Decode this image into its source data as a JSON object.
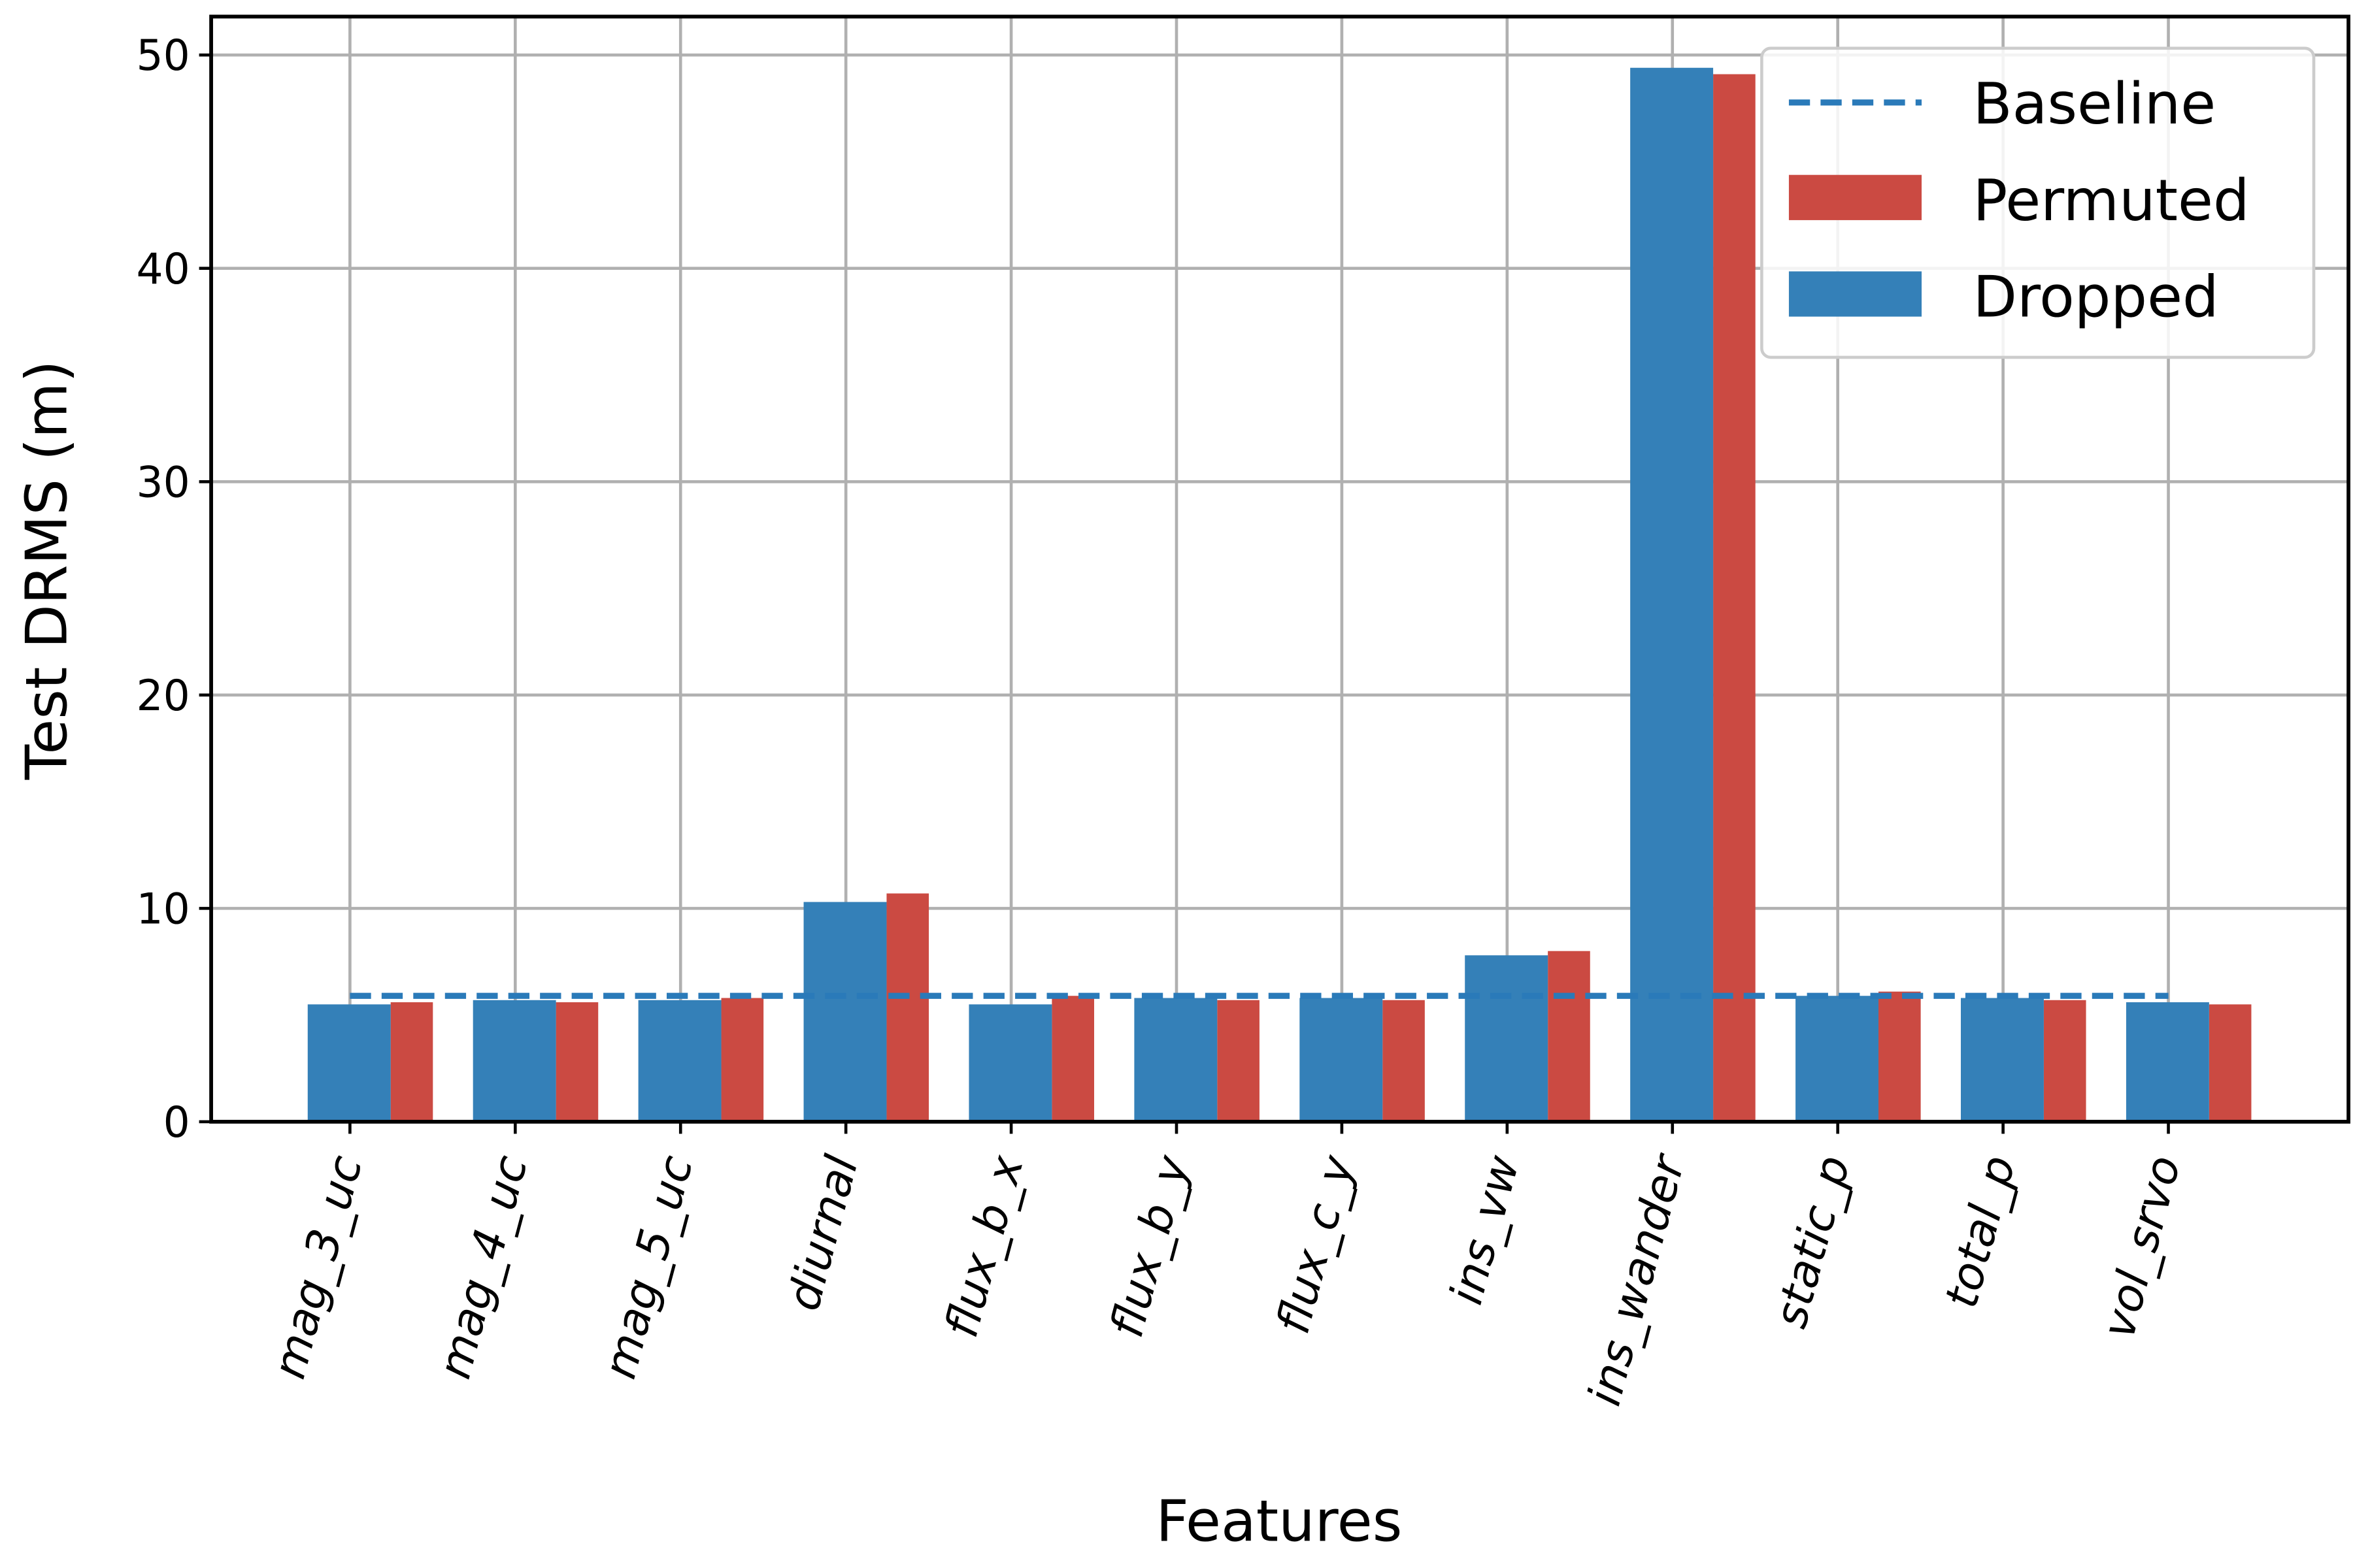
{
  "chart_data": {
    "type": "bar",
    "xlabel": "Features",
    "ylabel": "Test DRMS (m)",
    "categories": [
      "mag_3_uc",
      "mag_4_uc",
      "mag_5_uc",
      "diurnal",
      "flux_b_x",
      "flux_b_y",
      "flux_c_y",
      "ins_vw",
      "ins_wander",
      "static_p",
      "total_p",
      "vol_srvo"
    ],
    "baseline": {
      "name": "Baseline",
      "value": 5.9,
      "color": "#2a7ab9"
    },
    "series": [
      {
        "name": "Permuted",
        "color": "#cb4a42",
        "values": [
          5.6,
          5.6,
          5.8,
          10.7,
          5.9,
          5.7,
          5.7,
          8.0,
          49.1,
          6.1,
          5.7,
          5.5
        ]
      },
      {
        "name": "Dropped",
        "color": "#3480b8",
        "values": [
          5.5,
          5.7,
          5.7,
          10.3,
          5.5,
          5.8,
          5.8,
          7.8,
          49.4,
          5.9,
          5.8,
          5.6
        ]
      }
    ],
    "ylim": [
      0,
      51.8
    ],
    "yticks": [
      0,
      10,
      20,
      30,
      40,
      50
    ],
    "grid": true,
    "legend": "upper right"
  }
}
